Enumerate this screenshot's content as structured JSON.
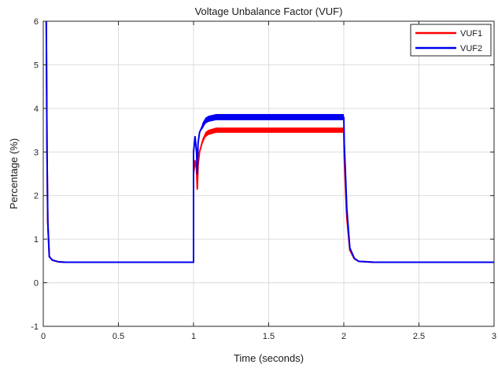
{
  "chart_data": {
    "type": "line",
    "title": "Voltage Unbalance Factor (VUF)",
    "xlabel": "Time (seconds)",
    "ylabel": "Percentage (%)",
    "xlim": [
      0,
      3
    ],
    "ylim": [
      -1,
      6
    ],
    "xticks": [
      0,
      0.5,
      1,
      1.5,
      2,
      2.5,
      3
    ],
    "xtick_labels": [
      "0",
      "0.5",
      "1",
      "1.5",
      "2",
      "2.5",
      "3"
    ],
    "yticks": [
      -1,
      0,
      1,
      2,
      3,
      4,
      5,
      6
    ],
    "ytick_labels": [
      "-1",
      "0",
      "1",
      "2",
      "3",
      "4",
      "5",
      "6"
    ],
    "grid": true,
    "legend_position": "top-right",
    "series": [
      {
        "name": "VUF1",
        "color": "#ff0000",
        "band": 0.06,
        "x": [
          0.02,
          0.025,
          0.03,
          0.04,
          0.06,
          0.1,
          0.15,
          1.0,
          1.0,
          1.01,
          1.02,
          1.025,
          1.03,
          1.04,
          1.06,
          1.08,
          1.1,
          1.15,
          1.3,
          1.5,
          2.0,
          2.003,
          2.01,
          2.02,
          2.04,
          2.07,
          2.1,
          2.2,
          3.0
        ],
        "y": [
          6.0,
          3.0,
          1.4,
          0.6,
          0.52,
          0.48,
          0.47,
          0.47,
          2.5,
          2.8,
          2.6,
          2.15,
          2.7,
          3.0,
          3.25,
          3.4,
          3.45,
          3.5,
          3.5,
          3.5,
          3.5,
          2.9,
          2.3,
          1.5,
          0.75,
          0.55,
          0.49,
          0.47,
          0.47
        ]
      },
      {
        "name": "VUF2",
        "color": "#0000ee",
        "band": 0.07,
        "x": [
          0.02,
          0.025,
          0.03,
          0.04,
          0.06,
          0.1,
          0.15,
          1.0,
          1.0,
          1.01,
          1.02,
          1.025,
          1.03,
          1.04,
          1.06,
          1.08,
          1.1,
          1.15,
          1.3,
          1.5,
          2.0,
          2.003,
          2.01,
          2.02,
          2.04,
          2.07,
          2.1,
          2.2,
          3.0
        ],
        "y": [
          6.0,
          3.0,
          1.4,
          0.6,
          0.52,
          0.48,
          0.47,
          0.47,
          3.0,
          3.35,
          3.0,
          2.5,
          3.2,
          3.45,
          3.6,
          3.72,
          3.76,
          3.8,
          3.8,
          3.8,
          3.8,
          3.2,
          2.6,
          1.7,
          0.8,
          0.56,
          0.49,
          0.47,
          0.47
        ]
      }
    ]
  }
}
